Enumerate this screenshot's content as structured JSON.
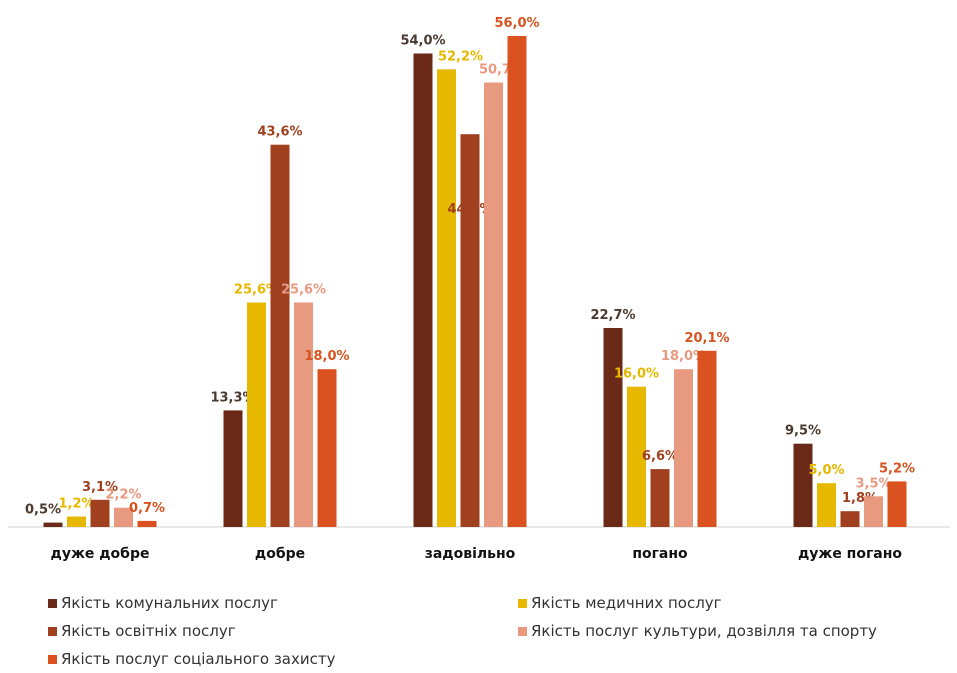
{
  "chart_data": {
    "type": "bar",
    "categories": [
      "дуже добре",
      "добре",
      "задовільно",
      "погано",
      "дуже погано"
    ],
    "series": [
      {
        "name": "Якість комунальних послуг",
        "color": "#6B2A17",
        "values": [
          0.5,
          13.3,
          54.0,
          22.7,
          9.5
        ],
        "labels": [
          "0,5%",
          "13,3%",
          "54,0%",
          "22,7%",
          "9,5%"
        ],
        "label_color": "#4a3a30"
      },
      {
        "name": "Якість медичних послуг",
        "color": "#E6B800",
        "values": [
          1.2,
          25.6,
          52.2,
          16.0,
          5.0
        ],
        "labels": [
          "1,2%",
          "25,6%",
          "52,2%",
          "16,0%",
          "5,0%"
        ],
        "label_color": "#E6B800"
      },
      {
        "name": "Якість освітніх послуг",
        "color": "#A0401F",
        "values": [
          3.1,
          43.6,
          44.8,
          6.6,
          1.8
        ],
        "labels": [
          "3,1%",
          "43,6%",
          "44,8%",
          "6,6%",
          "1,8%"
        ],
        "label_color": "#A0401F"
      },
      {
        "name": "Якість послуг культури, дозвілля та спорту",
        "color": "#E89A80",
        "values": [
          2.2,
          25.6,
          50.7,
          18.0,
          3.5
        ],
        "labels": [
          "2,2%",
          "25,6%",
          "50,7%",
          "18,0%",
          "3,5%"
        ],
        "label_color": "#E89A80"
      },
      {
        "name": "Якість послуг соціального захисту",
        "color": "#D9521F",
        "values": [
          0.7,
          18.0,
          56.0,
          20.1,
          5.2
        ],
        "labels": [
          "0,7%",
          "18,0%",
          "56,0%",
          "20,1%",
          "5,2%"
        ],
        "label_color": "#D9521F"
      }
    ],
    "ylim": [
      0,
      56
    ],
    "grid": false,
    "legend_position": "bottom"
  }
}
